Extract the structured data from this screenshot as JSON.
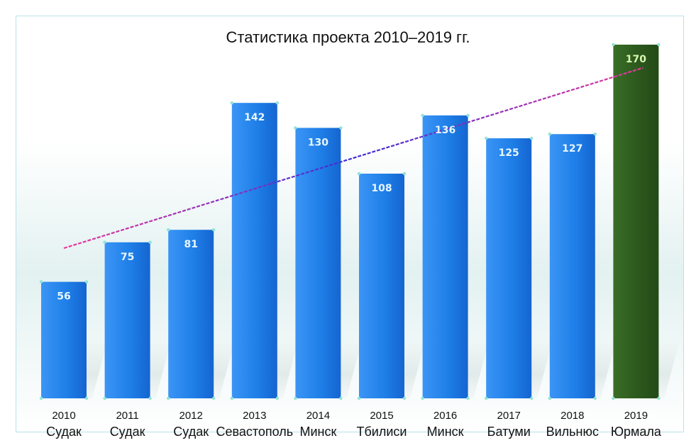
{
  "chart_data": {
    "type": "bar",
    "title": "Статистика проекта 2010–2019 гг.",
    "xlabel": "",
    "ylabel": "",
    "categories": [
      {
        "year": "2010",
        "city": "Судак"
      },
      {
        "year": "2011",
        "city": "Судак"
      },
      {
        "year": "2012",
        "city": "Судак"
      },
      {
        "year": "2013",
        "city": "Севастополь"
      },
      {
        "year": "2014",
        "city": "Минск"
      },
      {
        "year": "2015",
        "city": "Тбилиси"
      },
      {
        "year": "2016",
        "city": "Минск"
      },
      {
        "year": "2017",
        "city": "Батуми"
      },
      {
        "year": "2018",
        "city": "Вильнюс"
      },
      {
        "year": "2019",
        "city": "Юрмала"
      }
    ],
    "values": [
      56,
      75,
      81,
      142,
      130,
      108,
      136,
      125,
      127,
      170
    ],
    "data_labels": [
      "56",
      "75",
      "81",
      "142",
      "130",
      "108",
      "136",
      "125",
      "127",
      "170"
    ],
    "ylim": [
      0,
      170
    ],
    "grid": false,
    "trendline": {
      "type": "linear",
      "visible": true
    },
    "colors": {
      "bar": "#1f7fe8",
      "highlight_bar": "#2d5a1e",
      "bar_label": "#e6f6ff",
      "highlight_label": "#d9f7b0",
      "trend_start": "#e8389a",
      "trend_end": "#3b2fd6"
    },
    "highlight_index": 9
  }
}
